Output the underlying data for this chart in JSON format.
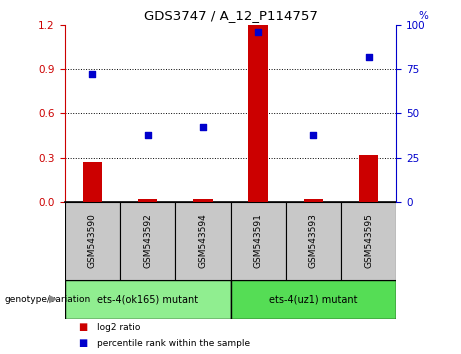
{
  "title": "GDS3747 / A_12_P114757",
  "samples": [
    "GSM543590",
    "GSM543592",
    "GSM543594",
    "GSM543591",
    "GSM543593",
    "GSM543595"
  ],
  "log2_ratio": [
    0.27,
    0.02,
    0.02,
    1.2,
    0.02,
    0.32
  ],
  "percentile_rank": [
    72,
    38,
    42,
    96,
    38,
    82
  ],
  "ylim_left": [
    0,
    1.2
  ],
  "ylim_right": [
    0,
    100
  ],
  "yticks_left": [
    0,
    0.3,
    0.6,
    0.9,
    1.2
  ],
  "yticks_right": [
    0,
    25,
    50,
    75,
    100
  ],
  "groups": [
    {
      "label": "ets-4(ok165) mutant",
      "samples_idx": [
        0,
        1,
        2
      ],
      "color": "#90EE90"
    },
    {
      "label": "ets-4(uz1) mutant",
      "samples_idx": [
        3,
        4,
        5
      ],
      "color": "#55DD55"
    }
  ],
  "bar_color": "#CC0000",
  "dot_color": "#0000CC",
  "left_axis_color": "#CC0000",
  "right_axis_color": "#0000CC",
  "plot_bg_color": "#FFFFFF",
  "tick_label_bg": "#C8C8C8",
  "dotted_lines": [
    0.3,
    0.6,
    0.9
  ],
  "group_label_text": "genotype/variation",
  "legend": [
    {
      "color": "#CC0000",
      "label": "log2 ratio"
    },
    {
      "color": "#0000CC",
      "label": "percentile rank within the sample"
    }
  ],
  "bar_width": 0.35
}
